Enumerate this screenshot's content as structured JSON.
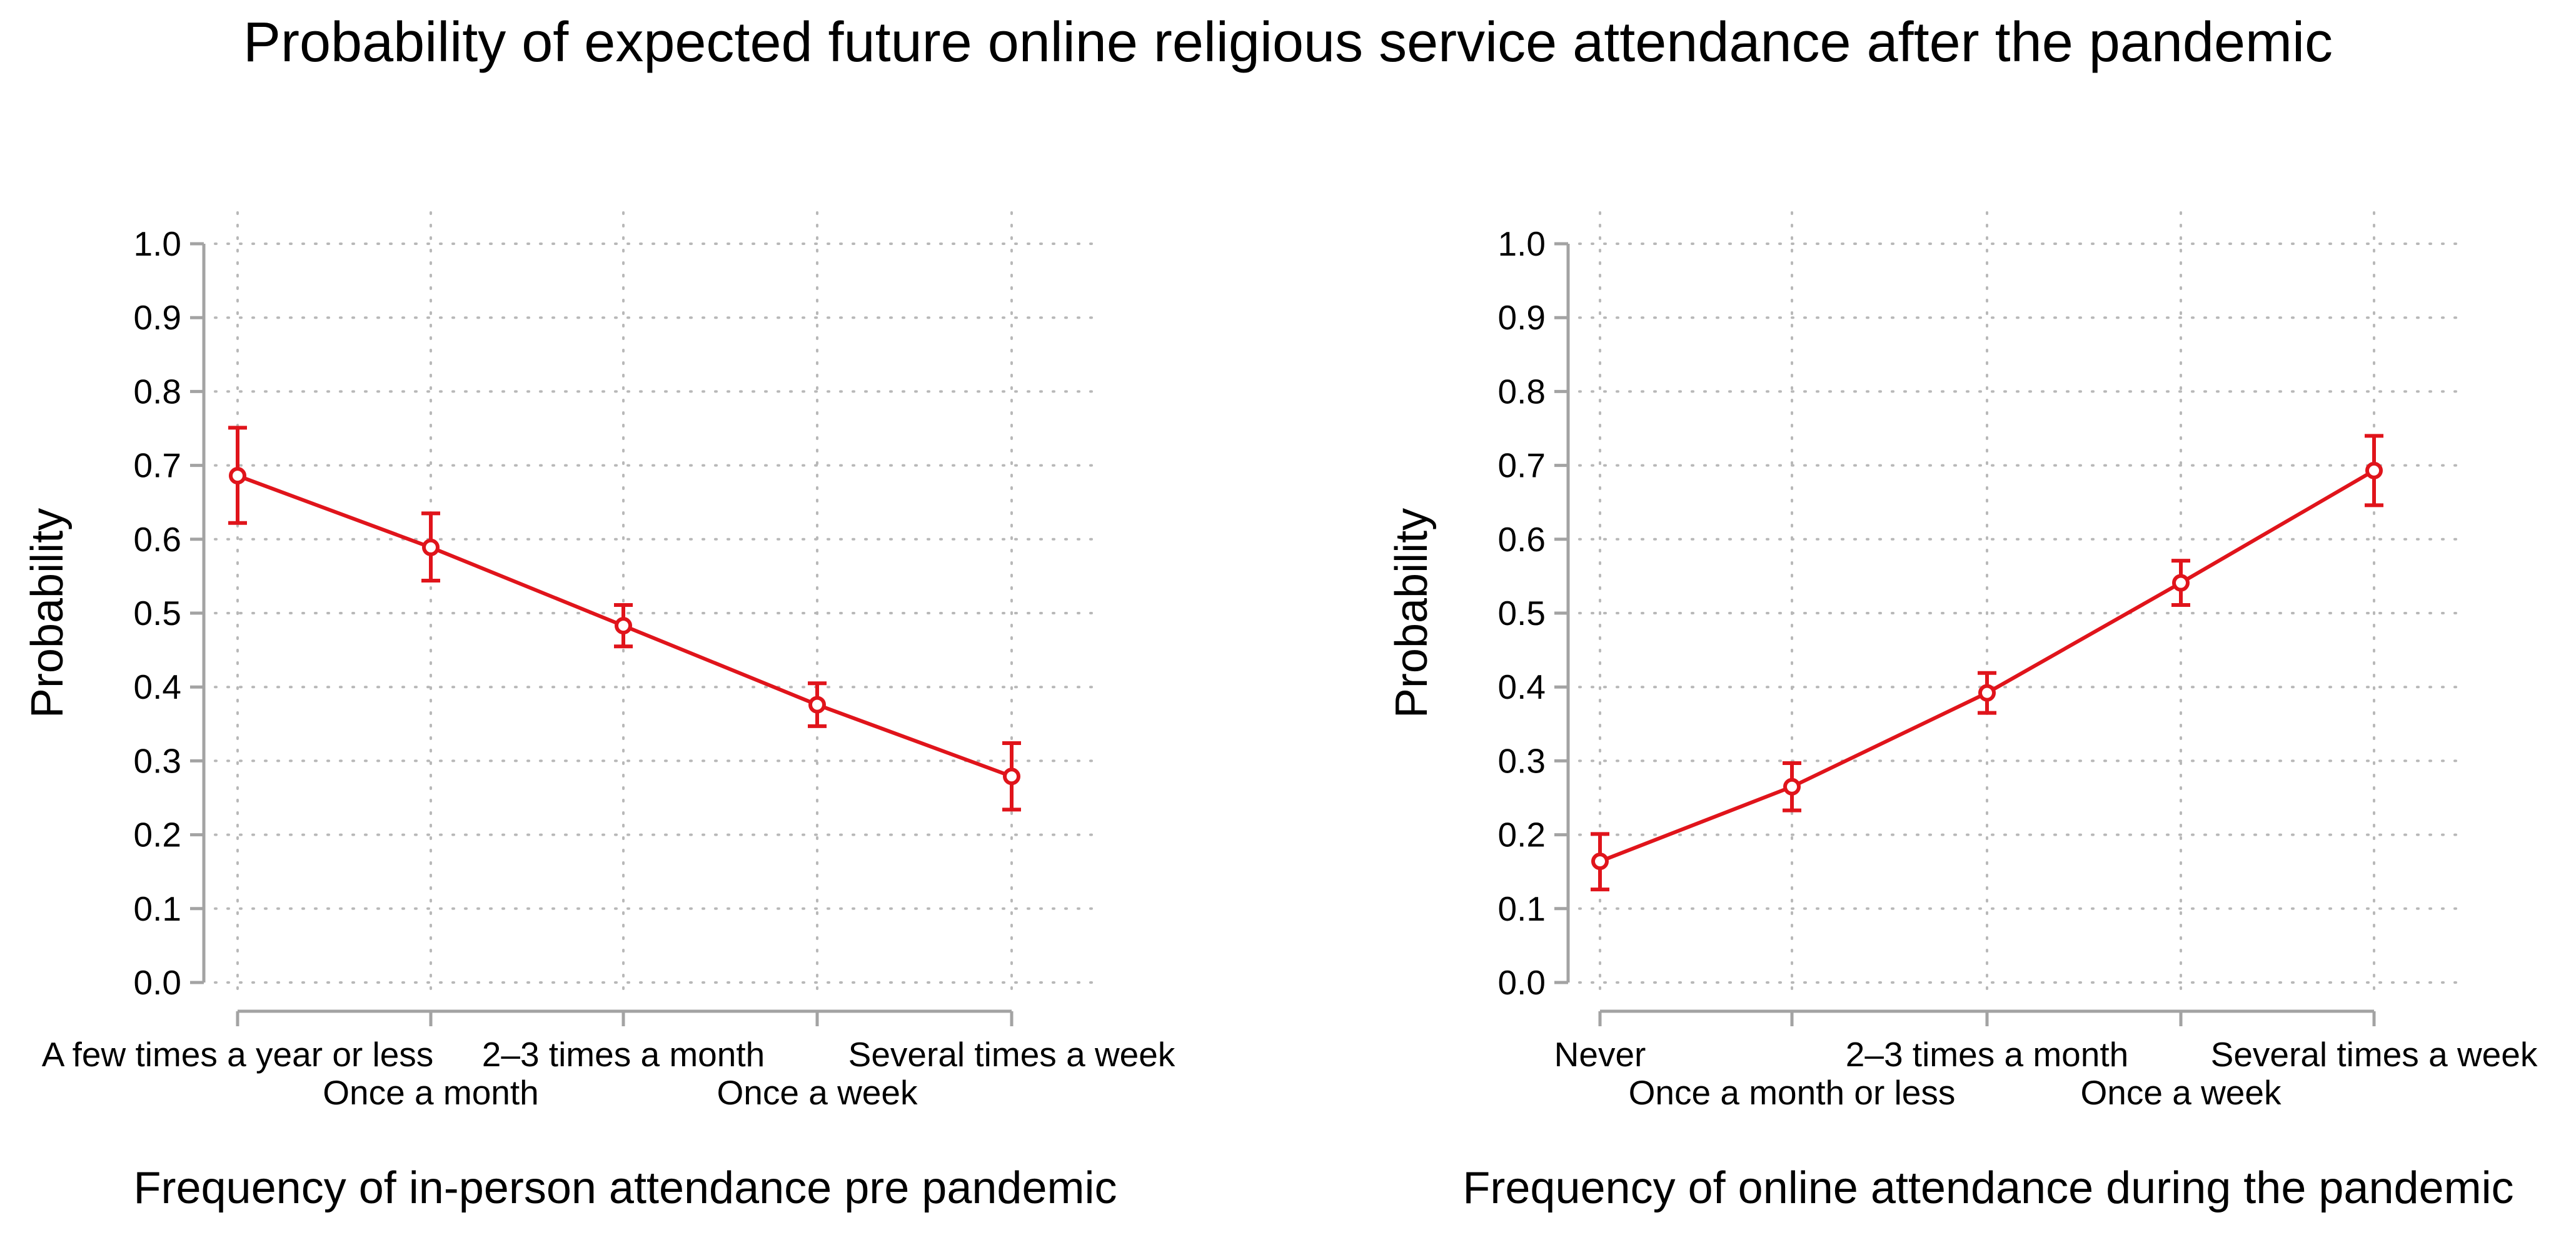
{
  "title": "Probability of expected future online religious service attendance after the pandemic",
  "colors": {
    "series": "#e0141b",
    "axis": "#a3a3a3",
    "grid": "#b8b8b8",
    "text": "#000000"
  },
  "chart_data": [
    {
      "type": "line",
      "title": "",
      "xlabel": "Frequency of in-person attendance pre pandemic",
      "ylabel": "Probability",
      "ylim": [
        0,
        1
      ],
      "yticks": [
        "0.0",
        "0.1",
        "0.2",
        "0.3",
        "0.4",
        "0.5",
        "0.6",
        "0.7",
        "0.8",
        "0.9",
        "1.0"
      ],
      "grid": true,
      "categories": [
        "A few times a year or less",
        "Once a month",
        "2–3 times a month",
        "Once a week",
        "Several times a week"
      ],
      "series": [
        {
          "name": "Probability",
          "values": [
            0.686,
            0.589,
            0.483,
            0.376,
            0.279
          ],
          "ci_low": [
            0.622,
            0.544,
            0.455,
            0.347,
            0.234
          ],
          "ci_high": [
            0.751,
            0.635,
            0.511,
            0.405,
            0.324
          ]
        }
      ]
    },
    {
      "type": "line",
      "title": "",
      "xlabel": "Frequency of online attendance during the pandemic",
      "ylabel": "Probability",
      "ylim": [
        0,
        1
      ],
      "yticks": [
        "0.0",
        "0.1",
        "0.2",
        "0.3",
        "0.4",
        "0.5",
        "0.6",
        "0.7",
        "0.8",
        "0.9",
        "1.0"
      ],
      "grid": true,
      "categories": [
        "Never",
        "Once a month or less",
        "2–3 times a month",
        "Once a week",
        "Several times a week"
      ],
      "series": [
        {
          "name": "Probability",
          "values": [
            0.164,
            0.265,
            0.392,
            0.541,
            0.693
          ],
          "ci_low": [
            0.126,
            0.233,
            0.365,
            0.511,
            0.646
          ],
          "ci_high": [
            0.201,
            0.297,
            0.419,
            0.571,
            0.74
          ]
        }
      ]
    }
  ]
}
